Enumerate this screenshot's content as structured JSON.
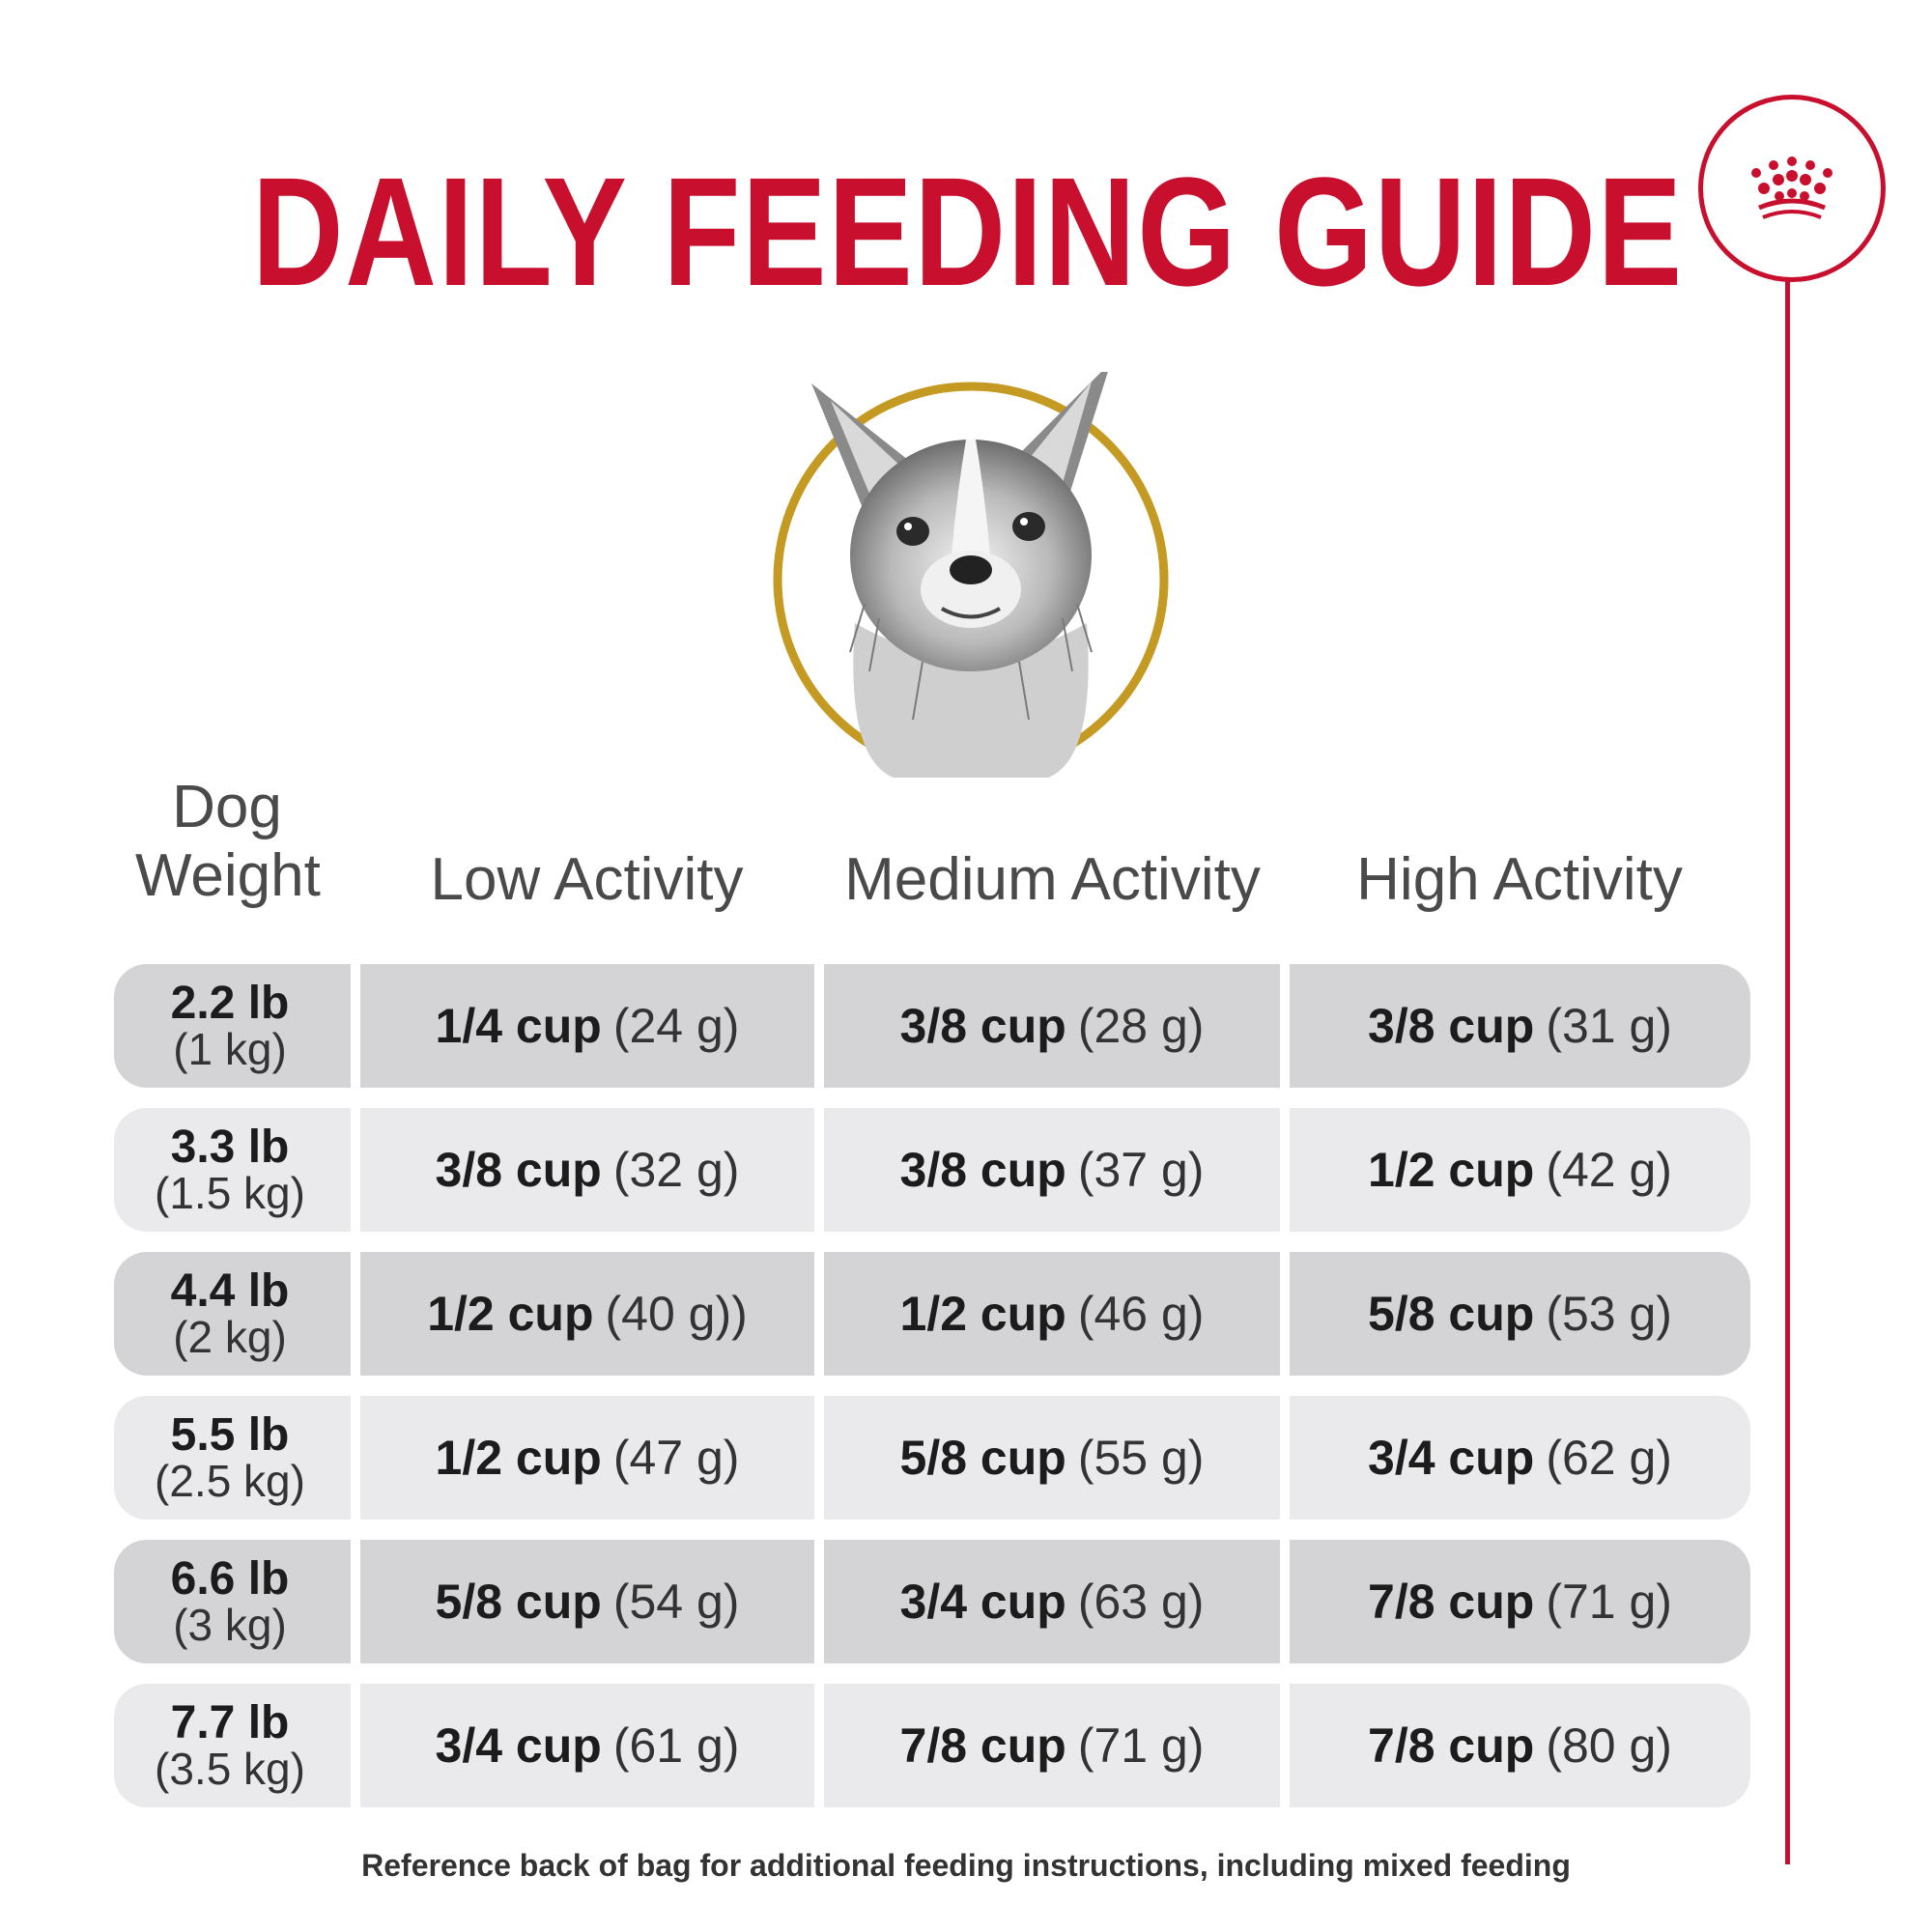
{
  "title": "DAILY FEEDING GUIDE",
  "colors": {
    "brand_red": "#c8102e",
    "portrait_ring": "#c49a22",
    "row_dark": "#d4d4d7",
    "row_light": "#eaeaec"
  },
  "logo": {
    "icon": "crown-icon"
  },
  "portrait": {
    "icon": "chihuahua-dog-illustration"
  },
  "headers": {
    "weight_line1": "Dog",
    "weight_line2": "Weight",
    "low": "Low Activity",
    "medium": "Medium Activity",
    "high": "High Activity"
  },
  "rows": [
    {
      "lb": "2.2 lb",
      "kg": "(1 kg)",
      "low_cup": "1/4 cup",
      "low_g": "(24 g)",
      "med_cup": "3/8 cup",
      "med_g": "(28 g)",
      "high_cup": "3/8 cup",
      "high_g": "(31 g)"
    },
    {
      "lb": "3.3 lb",
      "kg": "(1.5 kg)",
      "low_cup": "3/8 cup",
      "low_g": "(32 g)",
      "med_cup": "3/8 cup",
      "med_g": "(37 g)",
      "high_cup": "1/2 cup",
      "high_g": "(42 g)"
    },
    {
      "lb": "4.4 lb",
      "kg": "(2 kg)",
      "low_cup": "1/2 cup",
      "low_g": "(40 g))",
      "med_cup": "1/2 cup",
      "med_g": "(46 g)",
      "high_cup": "5/8 cup",
      "high_g": "(53 g)"
    },
    {
      "lb": "5.5 lb",
      "kg": "(2.5 kg)",
      "low_cup": "1/2 cup",
      "low_g": "(47 g)",
      "med_cup": "5/8 cup",
      "med_g": "(55 g)",
      "high_cup": "3/4 cup",
      "high_g": "(62 g)"
    },
    {
      "lb": "6.6 lb",
      "kg": "(3 kg)",
      "low_cup": "5/8 cup",
      "low_g": "(54 g)",
      "med_cup": "3/4 cup",
      "med_g": "(63 g)",
      "high_cup": "7/8 cup",
      "high_g": "(71 g)"
    },
    {
      "lb": "7.7 lb",
      "kg": "(3.5 kg)",
      "low_cup": "3/4 cup",
      "low_g": "(61 g)",
      "med_cup": "7/8 cup",
      "med_g": "(71 g)",
      "high_cup": "7/8 cup",
      "high_g": "(80 g)"
    }
  ],
  "footnote": "Reference back of bag for additional feeding instructions, including mixed feeding"
}
